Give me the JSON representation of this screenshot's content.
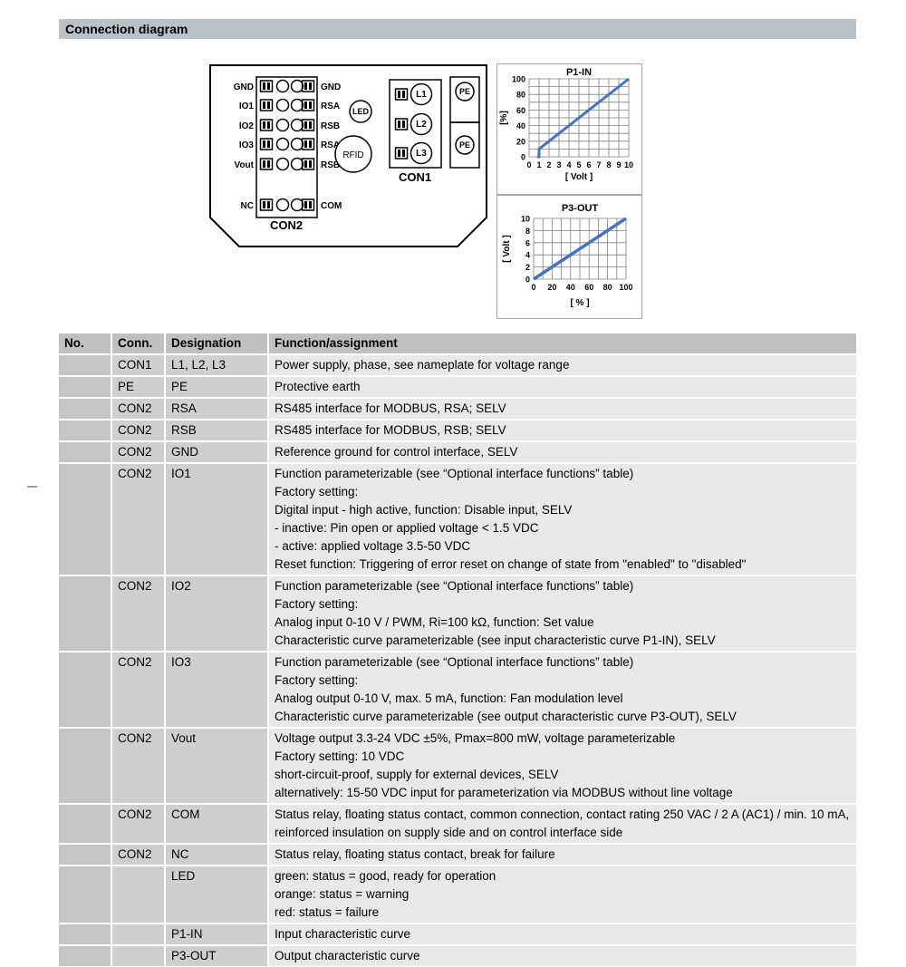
{
  "page": {
    "title": "Connection diagram"
  },
  "device": {
    "con2": {
      "label": "CON2",
      "rows": [
        {
          "left": "GND",
          "right": "GND"
        },
        {
          "left": "IO1",
          "right": "RSA"
        },
        {
          "left": "IO2",
          "right": "RSB"
        },
        {
          "left": "IO3",
          "right": "RSA"
        },
        {
          "left": "Vout",
          "right": "RSB"
        },
        {
          "left": "NC",
          "right": "COM"
        }
      ]
    },
    "con1": {
      "label": "CON1",
      "rows": [
        "L1",
        "L2",
        "L3"
      ]
    },
    "pe": [
      "PE",
      "PE"
    ],
    "led_label": "LED",
    "rfid_label": "RFID"
  },
  "chart_data": [
    {
      "type": "line",
      "title": "P1-IN",
      "xlabel": "[ Volt ]",
      "ylabel": "[%]",
      "xlim": [
        0,
        10
      ],
      "ylim": [
        0,
        100
      ],
      "xticks": [
        0,
        1,
        2,
        3,
        4,
        5,
        6,
        7,
        8,
        9,
        10
      ],
      "yticks": [
        0,
        20,
        40,
        60,
        80,
        100
      ],
      "x_grid_step": 1,
      "y_grid_step": 10,
      "grid": true,
      "line_color": "#4472c4",
      "points": [
        [
          0.8,
          0
        ],
        [
          1,
          0
        ],
        [
          1,
          10
        ],
        [
          10,
          100
        ]
      ]
    },
    {
      "type": "line",
      "title": "P3-OUT",
      "xlabel": "[ % ]",
      "ylabel": "[ Volt ]",
      "xlim": [
        0,
        100
      ],
      "ylim": [
        0,
        10
      ],
      "xticks": [
        0,
        20,
        40,
        60,
        80,
        100
      ],
      "yticks": [
        0,
        2,
        4,
        6,
        8,
        10
      ],
      "x_grid_step": 10,
      "y_grid_step": 2,
      "grid": true,
      "line_color": "#4472c4",
      "points": [
        [
          0,
          0
        ],
        [
          100,
          10
        ]
      ]
    }
  ],
  "table": {
    "headers": [
      "No.",
      "Conn.",
      "Designation",
      "Function/assignment"
    ],
    "rows": [
      {
        "no": "",
        "conn": "CON1",
        "designation": "L1, L2, L3",
        "function": [
          "Power supply, phase, see nameplate for voltage range"
        ]
      },
      {
        "no": "",
        "conn": "PE",
        "designation": "PE",
        "function": [
          "Protective earth"
        ]
      },
      {
        "no": "",
        "conn": "CON2",
        "designation": "RSA",
        "function": [
          "RS485 interface for MODBUS, RSA; SELV"
        ]
      },
      {
        "no": "",
        "conn": "CON2",
        "designation": "RSB",
        "function": [
          "RS485 interface for MODBUS, RSB; SELV"
        ]
      },
      {
        "no": "",
        "conn": "CON2",
        "designation": "GND",
        "function": [
          "Reference ground for control interface, SELV"
        ]
      },
      {
        "no": "",
        "conn": "CON2",
        "designation": "IO1",
        "function": [
          "Function parameterizable (see “Optional interface functions” table)",
          "Factory setting:",
          "Digital input - high active, function: Disable input, SELV",
          "- inactive: Pin open or applied voltage < 1.5 VDC",
          "- active: applied voltage 3.5-50 VDC",
          "Reset function: Triggering of error reset on change of state from \"enabled\" to \"disabled\""
        ]
      },
      {
        "no": "",
        "conn": "CON2",
        "designation": "IO2",
        "function": [
          "Function parameterizable (see “Optional interface functions” table)",
          "Factory setting:",
          "Analog input 0-10 V / PWM, Ri=100 kΩ, function: Set value",
          "Characteristic curve parameterizable (see input characteristic curve P1-IN), SELV"
        ]
      },
      {
        "no": "",
        "conn": "CON2",
        "designation": "IO3",
        "function": [
          "Function parameterizable (see “Optional interface functions” table)",
          "Factory setting:",
          "Analog output 0-10 V, max. 5 mA, function: Fan modulation level",
          "Characteristic curve parameterizable (see output characteristic curve P3-OUT), SELV"
        ]
      },
      {
        "no": "",
        "conn": "CON2",
        "designation": "Vout",
        "function": [
          "Voltage output 3.3-24 VDC ±5%, Pmax=800 mW, voltage parameterizable",
          "Factory setting: 10 VDC",
          "short-circuit-proof, supply for external devices, SELV",
          "alternatively: 15-50 VDC input for parameterization via MODBUS without line voltage"
        ]
      },
      {
        "no": "",
        "conn": "CON2",
        "designation": "COM",
        "function": [
          "Status relay, floating status contact, common connection, contact rating 250 VAC / 2 A (AC1) / min. 10 mA, reinforced insulation on supply side and on control interface side"
        ]
      },
      {
        "no": "",
        "conn": "CON2",
        "designation": "NC",
        "function": [
          "Status relay, floating status contact, break for failure"
        ]
      },
      {
        "no": "",
        "conn": "",
        "designation": "LED",
        "function": [
          "green: status = good, ready for operation",
          "orange: status = warning",
          "red: status = failure"
        ]
      },
      {
        "no": "",
        "conn": "",
        "designation": "P1-IN",
        "function": [
          "Input characteristic curve"
        ]
      },
      {
        "no": "",
        "conn": "",
        "designation": "P3-OUT",
        "function": [
          "Output characteristic curve"
        ]
      }
    ]
  }
}
